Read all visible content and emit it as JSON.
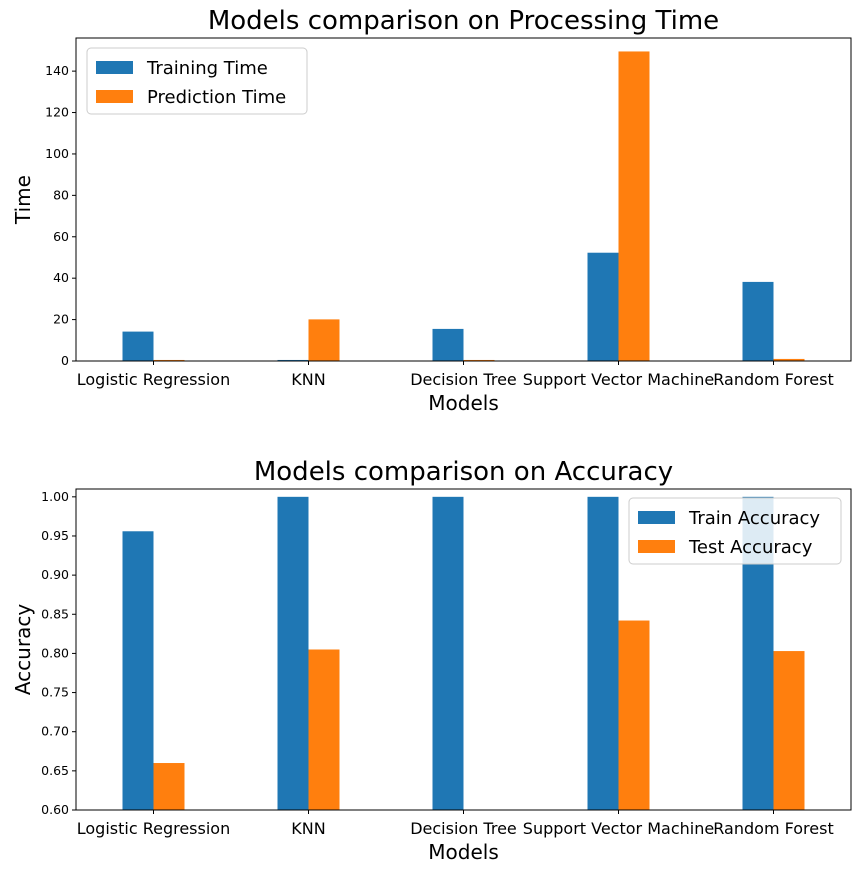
{
  "colors": {
    "series1": "#1f77b4",
    "series2": "#ff7f0e"
  },
  "chart_data": [
    {
      "type": "bar",
      "title": "Models comparison on Processing Time",
      "xlabel": "Models",
      "ylabel": "Time",
      "categories": [
        "Logistic Regression",
        "KNN",
        "Decision Tree",
        "Support Vector Machine",
        "Random Forest"
      ],
      "series": [
        {
          "name": "Training Time",
          "values": [
            14.2,
            0.5,
            15.5,
            52.3,
            38.2
          ]
        },
        {
          "name": "Prediction Time",
          "values": [
            0.5,
            20.1,
            0.5,
            149.5,
            1.0
          ]
        }
      ],
      "ylim": [
        0,
        156
      ],
      "yticks": [
        0,
        20,
        40,
        60,
        80,
        100,
        120,
        140
      ],
      "ytick_labels": [
        "0",
        "20",
        "40",
        "60",
        "80",
        "100",
        "120",
        "140"
      ],
      "legend": "top-left",
      "grid": false
    },
    {
      "type": "bar",
      "title": "Models comparison on Accuracy",
      "xlabel": "Models",
      "ylabel": "Accuracy",
      "categories": [
        "Logistic Regression",
        "KNN",
        "Decision Tree",
        "Support Vector Machine",
        "Random Forest"
      ],
      "series": [
        {
          "name": "Train Accuracy",
          "values": [
            0.956,
            1.0,
            1.0,
            1.0,
            1.0
          ]
        },
        {
          "name": "Test Accuracy",
          "values": [
            0.66,
            0.805,
            0.585,
            0.842,
            0.803
          ]
        }
      ],
      "ylim": [
        0.6,
        1.01
      ],
      "yticks": [
        0.6,
        0.65,
        0.7,
        0.75,
        0.8,
        0.85,
        0.9,
        0.95,
        1.0
      ],
      "ytick_labels": [
        "0.60",
        "0.65",
        "0.70",
        "0.75",
        "0.80",
        "0.85",
        "0.90",
        "0.95",
        "1.00"
      ],
      "legend": "top-right",
      "grid": false
    }
  ]
}
